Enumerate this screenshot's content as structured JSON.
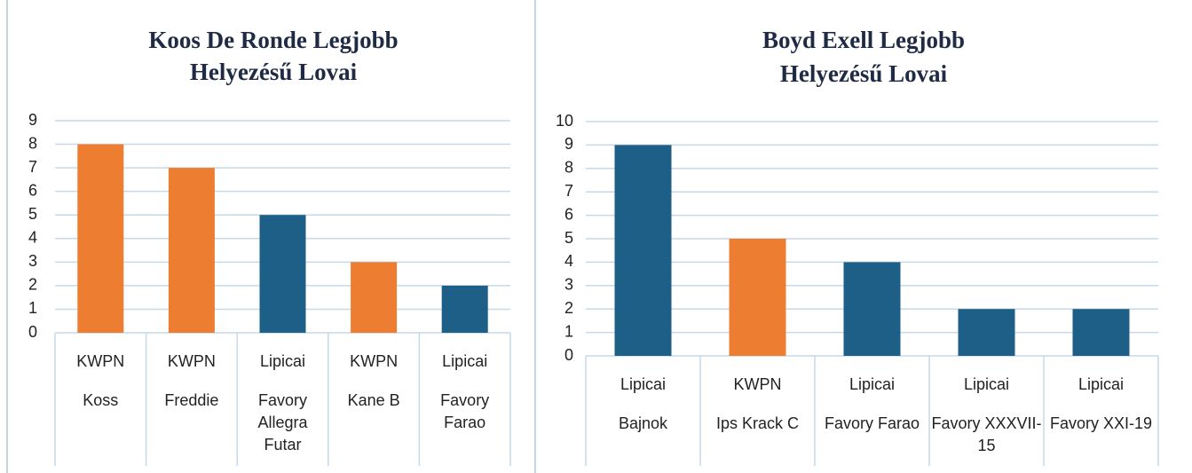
{
  "chart_data": [
    {
      "type": "bar",
      "title": [
        "Koos De Ronde Legjobb",
        "Helyezésű Lovai"
      ],
      "category_groups": [
        "KWPN",
        "KWPN",
        "Lipicai",
        "KWPN",
        "Lipicai"
      ],
      "categories": [
        "Koss",
        "Freddie",
        "Favory Allegra Futar",
        "Kane B",
        "Favory Farao"
      ],
      "values": [
        8,
        7,
        5,
        3,
        2
      ],
      "colors": [
        "#ed7d31",
        "#ed7d31",
        "#1d5f86",
        "#ed7d31",
        "#1d5f86"
      ],
      "ylim": [
        0,
        9
      ],
      "yticks": [
        0,
        1,
        2,
        3,
        4,
        5,
        6,
        7,
        8,
        9
      ],
      "grid": true
    },
    {
      "type": "bar",
      "title": [
        "Boyd Exell Legjobb",
        "Helyezésű Lovai"
      ],
      "category_groups": [
        "Lipicai",
        "KWPN",
        "Lipicai",
        "Lipicai",
        "Lipicai"
      ],
      "categories": [
        "Bajnok",
        "Ips Krack C",
        "Favory Farao",
        "Favory XXXVII-15",
        "Favory XXI-19"
      ],
      "values": [
        9,
        5,
        4,
        2,
        2
      ],
      "colors": [
        "#1d5f86",
        "#ed7d31",
        "#1d5f86",
        "#1d5f86",
        "#1d5f86"
      ],
      "ylim": [
        0,
        10
      ],
      "yticks": [
        0,
        1,
        2,
        3,
        4,
        5,
        6,
        7,
        8,
        9,
        10
      ],
      "grid": true
    }
  ]
}
